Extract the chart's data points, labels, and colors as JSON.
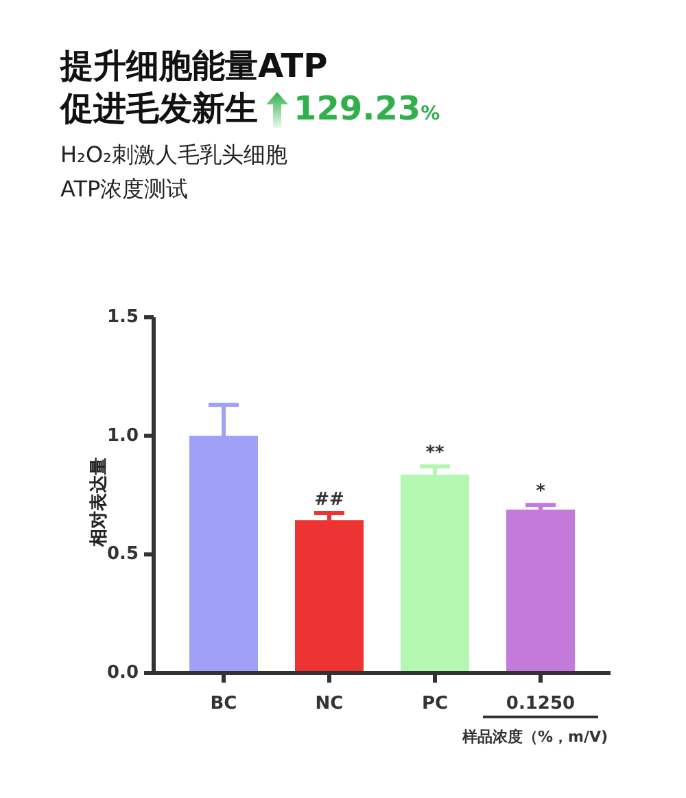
{
  "chart_data": {
    "type": "bar",
    "title": "提升细胞能量ATP\n促进毛发新生",
    "subtitle": "H₂O₂刺激人毛乳头细胞\nATP浓度测试",
    "ylabel": "相对表达量",
    "xlabel": "样品浓度（%，m/V)",
    "categories": [
      "BC",
      "NC",
      "PC",
      "0.1250"
    ],
    "values": [
      1.0,
      0.645,
      0.836,
      0.689
    ],
    "errors": [
      0.13,
      0.03,
      0.035,
      0.02
    ],
    "colors": [
      "#a0a0f8",
      "#ee3333",
      "#b3f7b0",
      "#c37adb"
    ],
    "ylim": [
      0,
      1.5
    ],
    "yticks": [
      {
        "value": 0,
        "label": "0.0"
      },
      0.5,
      {
        "value": 1,
        "label": "1.0"
      },
      1.5
    ],
    "grid": false,
    "annotations": [
      "129.23%",
      {
        "text": "##",
        "x": "NC",
        "y": 0.675
      },
      {
        "text": "**",
        "x": "PC",
        "y": 0.871
      },
      {
        "text": "*",
        "x": "0.1250",
        "y": 0.709
      }
    ]
  }
}
